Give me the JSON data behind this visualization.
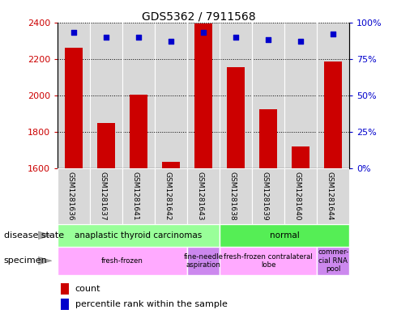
{
  "title": "GDS5362 / 7911568",
  "samples": [
    "GSM1281636",
    "GSM1281637",
    "GSM1281641",
    "GSM1281642",
    "GSM1281643",
    "GSM1281638",
    "GSM1281639",
    "GSM1281640",
    "GSM1281644"
  ],
  "counts": [
    2260,
    1850,
    2005,
    1635,
    2395,
    2155,
    1925,
    1720,
    2185
  ],
  "percentiles": [
    93,
    90,
    90,
    87,
    93,
    90,
    88,
    87,
    92
  ],
  "ylim_left": [
    1600,
    2400
  ],
  "ylim_right": [
    0,
    100
  ],
  "yticks_left": [
    1600,
    1800,
    2000,
    2200,
    2400
  ],
  "yticks_right": [
    0,
    25,
    50,
    75,
    100
  ],
  "disease_state_labels": [
    "anaplastic thyroid carcinomas",
    "normal"
  ],
  "disease_state_ranges": [
    [
      0,
      5
    ],
    [
      5,
      9
    ]
  ],
  "disease_colors": [
    "#99ff99",
    "#55ee55"
  ],
  "specimen_labels": [
    "fresh-frozen",
    "fine-needle\naspiration",
    "fresh-frozen contralateral\nlobe",
    "commer-\ncial RNA\npool"
  ],
  "specimen_ranges": [
    [
      0,
      4
    ],
    [
      4,
      5
    ],
    [
      5,
      8
    ],
    [
      8,
      9
    ]
  ],
  "specimen_colors": [
    "#ffaaff",
    "#cc88ee",
    "#ffaaff",
    "#cc88ee"
  ],
  "bar_color": "#cc0000",
  "dot_color": "#0000cc",
  "bar_width": 0.55,
  "background_color": "#ffffff",
  "label_color_left": "#cc0000",
  "label_color_right": "#0000cc",
  "plot_bg": "#d8d8d8"
}
